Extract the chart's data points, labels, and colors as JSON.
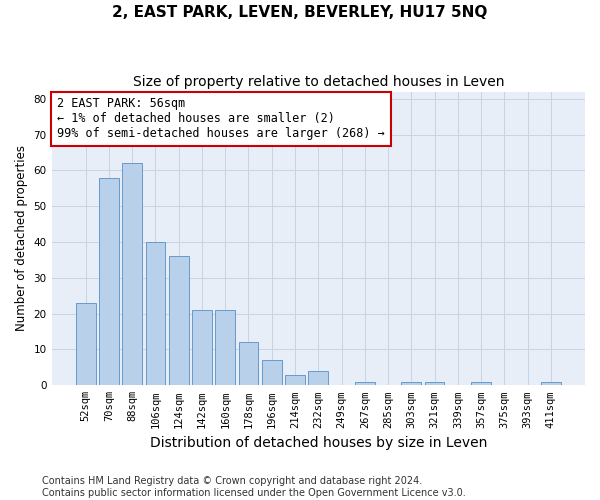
{
  "title": "2, EAST PARK, LEVEN, BEVERLEY, HU17 5NQ",
  "subtitle": "Size of property relative to detached houses in Leven",
  "xlabel": "Distribution of detached houses by size in Leven",
  "ylabel": "Number of detached properties",
  "categories": [
    "52sqm",
    "70sqm",
    "88sqm",
    "106sqm",
    "124sqm",
    "142sqm",
    "160sqm",
    "178sqm",
    "196sqm",
    "214sqm",
    "232sqm",
    "249sqm",
    "267sqm",
    "285sqm",
    "303sqm",
    "321sqm",
    "339sqm",
    "357sqm",
    "375sqm",
    "393sqm",
    "411sqm"
  ],
  "values": [
    23,
    58,
    62,
    40,
    36,
    21,
    21,
    12,
    7,
    3,
    4,
    0,
    1,
    0,
    1,
    1,
    0,
    1,
    0,
    0,
    1
  ],
  "bar_color": "#b8d0ea",
  "bar_edge_color": "#6699cc",
  "annotation_text": "2 EAST PARK: 56sqm\n← 1% of detached houses are smaller (2)\n99% of semi-detached houses are larger (268) →",
  "annotation_box_color": "#ffffff",
  "annotation_box_edge_color": "#cc0000",
  "ylim": [
    0,
    82
  ],
  "yticks": [
    0,
    10,
    20,
    30,
    40,
    50,
    60,
    70,
    80
  ],
  "grid_color": "#c8d4e4",
  "background_color": "#e8eef8",
  "footer_text": "Contains HM Land Registry data © Crown copyright and database right 2024.\nContains public sector information licensed under the Open Government Licence v3.0.",
  "title_fontsize": 11,
  "subtitle_fontsize": 10,
  "xlabel_fontsize": 10,
  "ylabel_fontsize": 8.5,
  "tick_fontsize": 7.5,
  "annotation_fontsize": 8.5,
  "footer_fontsize": 7
}
